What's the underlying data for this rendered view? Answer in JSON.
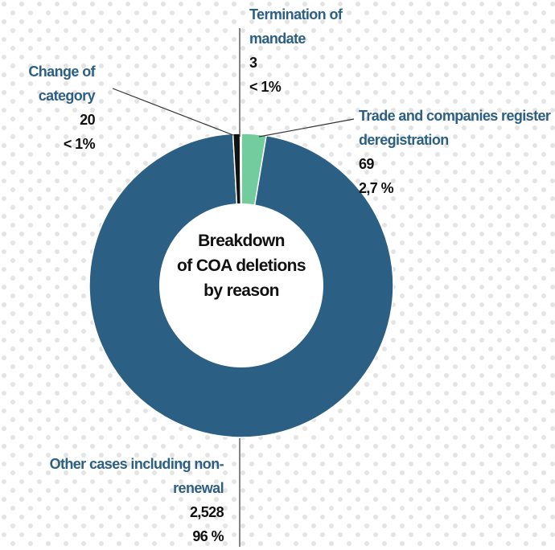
{
  "chart_data": {
    "type": "donut",
    "title_lines": [
      "Breakdown",
      "of COA deletions",
      "by reason"
    ],
    "categories": [
      "Trade and companies register deregistration",
      "Other cases including non-renewal",
      "Change of category",
      "Termination of mandate"
    ],
    "values": [
      69,
      2528,
      20,
      3
    ],
    "value_labels": [
      "69",
      "2,528",
      "20",
      "3"
    ],
    "share_labels": [
      "2,7 %",
      "96 %",
      "< 1%",
      "< 1%"
    ],
    "colors": [
      "#72cc9e",
      "#2c5f84",
      "#111111",
      "#ffffff"
    ]
  }
}
